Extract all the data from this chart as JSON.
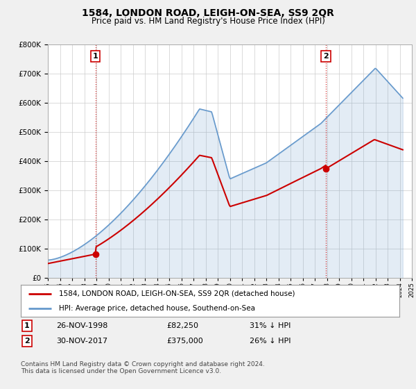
{
  "title": "1584, LONDON ROAD, LEIGH-ON-SEA, SS9 2QR",
  "subtitle": "Price paid vs. HM Land Registry's House Price Index (HPI)",
  "background_color": "#f0f0f0",
  "plot_bg_color": "#ffffff",
  "grid_color": "#cccccc",
  "hpi_color": "#6699cc",
  "price_color": "#cc0000",
  "ylim": [
    0,
    800000
  ],
  "yticks": [
    0,
    100000,
    200000,
    300000,
    400000,
    500000,
    600000,
    700000,
    800000
  ],
  "purchase1_year": 1998.917,
  "purchase1_price": 82250,
  "purchase2_year": 2017.917,
  "purchase2_price": 375000,
  "legend_label_price": "1584, LONDON ROAD, LEIGH-ON-SEA, SS9 2QR (detached house)",
  "legend_label_hpi": "HPI: Average price, detached house, Southend-on-Sea",
  "annotation1_label": "1",
  "annotation1_date": "26-NOV-1998",
  "annotation1_price": "£82,250",
  "annotation1_hpi": "31% ↓ HPI",
  "annotation2_label": "2",
  "annotation2_date": "30-NOV-2017",
  "annotation2_price": "£375,000",
  "annotation2_hpi": "26% ↓ HPI",
  "footnote": "Contains HM Land Registry data © Crown copyright and database right 2024.\nThis data is licensed under the Open Government Licence v3.0."
}
